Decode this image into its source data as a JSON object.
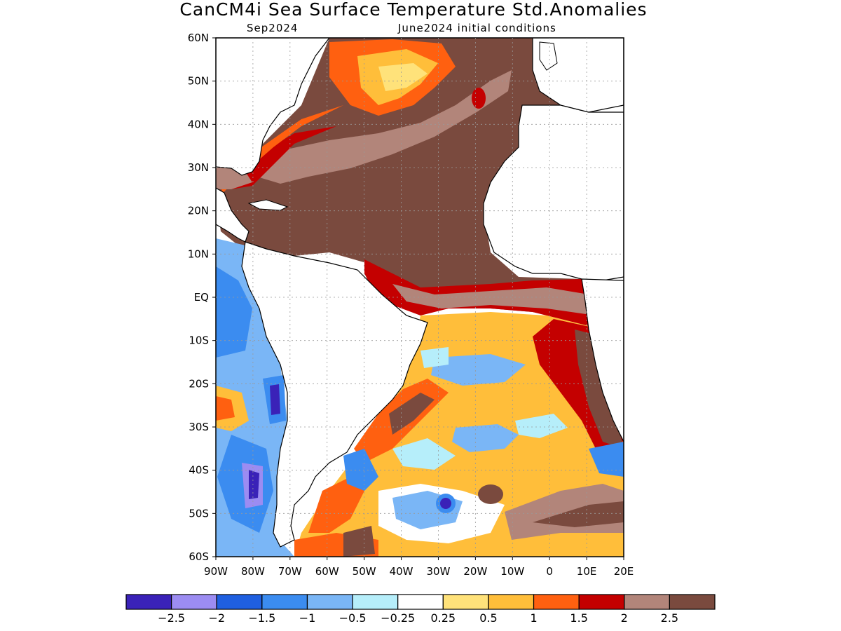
{
  "title": "CanCM4i Sea Surface Temperature Std.Anomalies",
  "subtitle_left": "Sep2024",
  "subtitle_right": "June2024 initial conditions",
  "map": {
    "lon_range": [
      -90,
      20
    ],
    "lat_range": [
      -60,
      60
    ],
    "grid": true,
    "lat_ticks": [
      {
        "value": 60,
        "label": "60N"
      },
      {
        "value": 50,
        "label": "50N"
      },
      {
        "value": 40,
        "label": "40N"
      },
      {
        "value": 30,
        "label": "30N"
      },
      {
        "value": 20,
        "label": "20N"
      },
      {
        "value": 10,
        "label": "10N"
      },
      {
        "value": 0,
        "label": "EQ"
      },
      {
        "value": -10,
        "label": "10S"
      },
      {
        "value": -20,
        "label": "20S"
      },
      {
        "value": -30,
        "label": "30S"
      },
      {
        "value": -40,
        "label": "40S"
      },
      {
        "value": -50,
        "label": "50S"
      },
      {
        "value": -60,
        "label": "60S"
      }
    ],
    "lon_ticks": [
      {
        "value": -90,
        "label": "90W"
      },
      {
        "value": -80,
        "label": "80W"
      },
      {
        "value": -70,
        "label": "70W"
      },
      {
        "value": -60,
        "label": "60W"
      },
      {
        "value": -50,
        "label": "50W"
      },
      {
        "value": -40,
        "label": "40W"
      },
      {
        "value": -30,
        "label": "30W"
      },
      {
        "value": -20,
        "label": "20W"
      },
      {
        "value": -10,
        "label": "10W"
      },
      {
        "value": 0,
        "label": "0"
      },
      {
        "value": 10,
        "label": "10E"
      },
      {
        "value": 20,
        "label": "20E"
      }
    ]
  },
  "colorbar": {
    "colors": [
      "#3a22b8",
      "#9c8cf2",
      "#1f5fe0",
      "#3b8cf0",
      "#7ab6f6",
      "#b6eefa",
      "#ffffff",
      "#ffe27a",
      "#ffbe3a",
      "#ff6010",
      "#c40000",
      "#b2857a",
      "#7a4a3e"
    ],
    "labels": [
      "-2.5",
      "-2",
      "-1.5",
      "-1",
      "-0.5",
      "-0.25",
      "0.25",
      "0.5",
      "1",
      "1.5",
      "2",
      "2.5"
    ]
  }
}
